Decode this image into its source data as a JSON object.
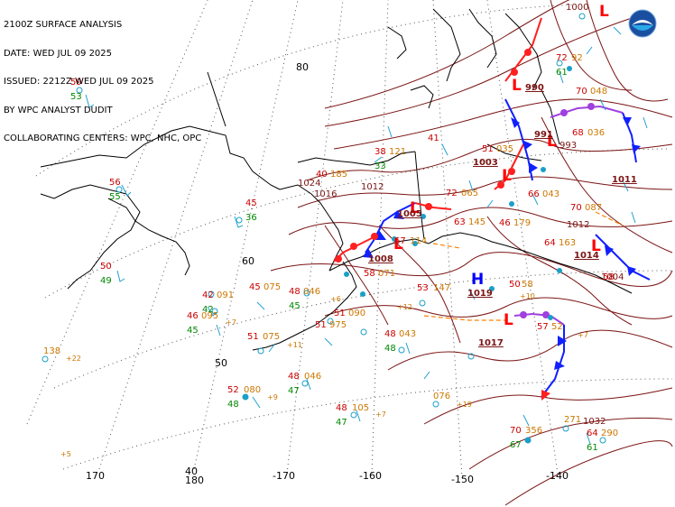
{
  "header": {
    "lines": [
      "2100Z SURFACE ANALYSIS",
      "DATE: WED JUL 09 2025",
      "ISSUED: 2212Z WED JUL 09 2025",
      "BY WPC ANALYST DUDIT",
      "COLLABORATING CENTERS: WPC, NHC, OPC"
    ]
  },
  "logo": {
    "name": "noaa-logo-icon",
    "text": "NOAA"
  },
  "colors": {
    "isobar": "#7b1414",
    "coast": "#000000",
    "grid": "#555555",
    "cold_front": "#1020ff",
    "warm_front": "#ff2020",
    "occluded": "#a040e0",
    "trough": "#ff8000",
    "temp": "#cc0000",
    "dewpoint": "#008800",
    "pressure": "#cc7700",
    "station": "#1aa0c8",
    "high": "#0000ff",
    "low": "#ff0000",
    "barb": "#20a0d0"
  },
  "graticule": {
    "longitude_labels": [
      "170",
      "180",
      "-170",
      "-160",
      "-150",
      "-140"
    ],
    "latitude_labels": [
      "80",
      "60",
      "50",
      "40"
    ]
  },
  "pressure_centers": [
    {
      "type": "L",
      "value": "990"
    },
    {
      "type": "L",
      "value": "991"
    },
    {
      "type": "L",
      "value": "1003"
    },
    {
      "type": "L",
      "value": "1005"
    },
    {
      "type": "L",
      "value": "1008"
    },
    {
      "type": "L",
      "value": "1014"
    },
    {
      "type": "L",
      "value": "1011"
    },
    {
      "type": "H",
      "value": "1019"
    },
    {
      "type": "L",
      "value": "1017"
    }
  ],
  "isobar_labels": [
    "1012",
    "1024",
    "1016",
    "1012",
    "1000",
    "993",
    "1004",
    "1032"
  ],
  "stations": [
    {
      "temp": "59",
      "dew": "53",
      "pres": ""
    },
    {
      "temp": "56",
      "dew": "55",
      "pres": ""
    },
    {
      "temp": "50",
      "dew": "49",
      "pres": ""
    },
    {
      "temp": "45",
      "dew": "36",
      "pres": ""
    },
    {
      "temp": "42",
      "dew": "42",
      "pres": "091"
    },
    {
      "temp": "46",
      "dew": "45",
      "pres": "095"
    },
    {
      "temp": "45",
      "dew": "",
      "pres": "075"
    },
    {
      "temp": "48",
      "dew": "45",
      "pres": "046"
    },
    {
      "temp": "51",
      "dew": "",
      "pres": "075"
    },
    {
      "temp": "52",
      "dew": "48",
      "pres": "080"
    },
    {
      "temp": "48",
      "dew": "47",
      "pres": "046"
    },
    {
      "temp": "48",
      "dew": "47",
      "pres": "105"
    },
    {
      "temp": "51",
      "dew": "",
      "pres": "975"
    },
    {
      "temp": "51",
      "dew": "",
      "pres": "090"
    },
    {
      "temp": "48",
      "dew": "48",
      "pres": "043"
    },
    {
      "temp": "53",
      "dew": "",
      "pres": "147"
    },
    {
      "temp": "40",
      "dew": "",
      "pres": "185"
    },
    {
      "temp": "38",
      "dew": "33",
      "pres": "121"
    },
    {
      "temp": "41",
      "dew": "",
      "pres": ""
    },
    {
      "temp": "51",
      "dew": "",
      "pres": "035"
    },
    {
      "temp": "72",
      "dew": "",
      "pres": "065"
    },
    {
      "temp": "63",
      "dew": "",
      "pres": "145"
    },
    {
      "temp": "67",
      "dew": "",
      "pres": "114"
    },
    {
      "temp": "58",
      "dew": "",
      "pres": "071"
    },
    {
      "temp": "46",
      "dew": "",
      "pres": "179"
    },
    {
      "temp": "64",
      "dew": "",
      "pres": "163"
    },
    {
      "temp": "66",
      "dew": "",
      "pres": "043"
    },
    {
      "temp": "70",
      "dew": "",
      "pres": "087"
    },
    {
      "temp": "68",
      "dew": "",
      "pres": "036"
    },
    {
      "temp": "72",
      "dew": "61",
      "pres": "92"
    },
    {
      "temp": "70",
      "dew": "",
      "pres": "048"
    },
    {
      "temp": "57",
      "dew": "",
      "pres": "52"
    },
    {
      "temp": "50",
      "dew": "",
      "pres": "58"
    },
    {
      "temp": "70",
      "dew": "67",
      "pres": "356"
    },
    {
      "temp": "64",
      "dew": "61",
      "pres": "290"
    },
    {
      "temp": "58",
      "dew": "",
      "pres": ""
    },
    {
      "temp": "",
      "dew": "",
      "pres": "076"
    },
    {
      "temp": "",
      "dew": "",
      "pres": "138"
    },
    {
      "temp": "",
      "dew": "",
      "pres": "271"
    }
  ],
  "tendencies": [
    "+22",
    "+5",
    "+7",
    "+6",
    "+11",
    "+9",
    "+7",
    "+19",
    "+12",
    "+10",
    "+7"
  ]
}
